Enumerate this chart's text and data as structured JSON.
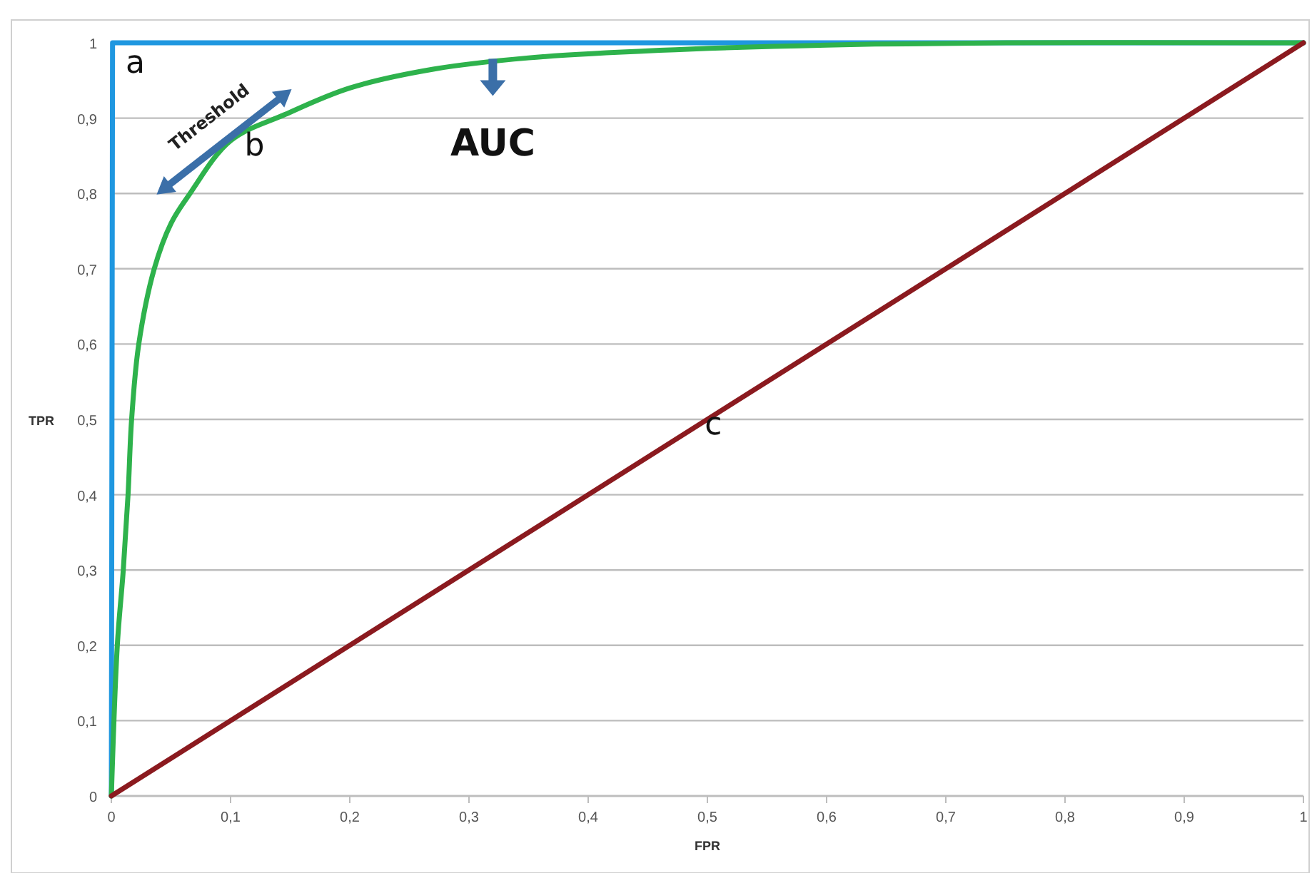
{
  "chart_data": {
    "type": "line",
    "xlabel": "FPR",
    "ylabel": "TPR",
    "series": [
      {
        "name": "a",
        "color": "#1f97e0",
        "x": [
          0,
          0.001,
          1
        ],
        "values": [
          0,
          1,
          1
        ]
      },
      {
        "name": "b",
        "color": "#2eb24c",
        "x": [
          0,
          0.005,
          0.01,
          0.014,
          0.017,
          0.023,
          0.036,
          0.05,
          0.066,
          0.1,
          0.146,
          0.2,
          0.27,
          0.35,
          0.46,
          0.6,
          0.75,
          1
        ],
        "values": [
          0,
          0.2,
          0.3,
          0.4,
          0.5,
          0.6,
          0.7,
          0.76,
          0.8,
          0.87,
          0.905,
          0.94,
          0.965,
          0.98,
          0.99,
          0.997,
          1,
          1
        ]
      },
      {
        "name": "c",
        "color": "#8b1a1f",
        "x": [
          0,
          1
        ],
        "values": [
          0,
          1
        ]
      }
    ],
    "annotations": [
      "AUC",
      "Threshold"
    ],
    "xlim": [
      0,
      1
    ],
    "ylim": [
      0,
      1
    ],
    "xticks": [
      0,
      {
        "value": 0.1,
        "label": "0,1"
      },
      {
        "value": 0.2,
        "label": "0,2"
      },
      {
        "value": 0.3,
        "label": "0,3"
      },
      {
        "value": 0.4,
        "label": "0,4"
      },
      {
        "value": 0.5,
        "label": "0,5"
      },
      {
        "value": 0.6,
        "label": "0,6"
      },
      {
        "value": 0.7,
        "label": "0,7"
      },
      {
        "value": 0.8,
        "label": "0,8"
      },
      {
        "value": 0.9,
        "label": "0,9"
      },
      1
    ],
    "yticks": [
      0,
      {
        "value": 0.1,
        "label": "0,1"
      },
      {
        "value": 0.2,
        "label": "0,2"
      },
      {
        "value": 0.3,
        "label": "0,3"
      },
      {
        "value": 0.4,
        "label": "0,4"
      },
      {
        "value": 0.5,
        "label": "0,5"
      },
      {
        "value": 0.6,
        "label": "0,6"
      },
      {
        "value": 0.7,
        "label": "0,7"
      },
      {
        "value": 0.8,
        "label": "0,8"
      },
      {
        "value": 0.9,
        "label": "0,9"
      },
      1
    ],
    "grid": "y",
    "marker": "none",
    "line_style": "solid"
  }
}
